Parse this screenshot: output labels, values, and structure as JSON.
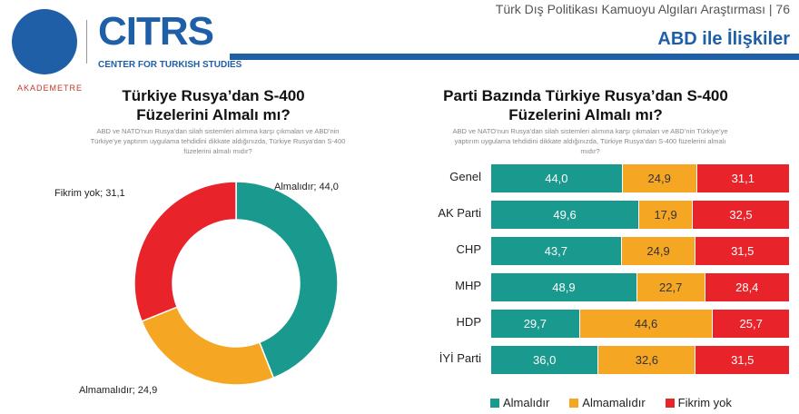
{
  "header": {
    "report_title": "Türk Dış Politikası Kamuoyu Algıları Araştırması | 76",
    "section_title": "ABD ile İlişkiler"
  },
  "logos": {
    "university": "KADİR HAS ÜNİVERSİTESİ 1997",
    "citrs": "CITRS",
    "citrs_sub": "CENTER FOR TURKISH STUDIES",
    "akademetre": "AKADEMETRE"
  },
  "colors": {
    "almalidir": "#1a9a8e",
    "almamalidir": "#f5a623",
    "fikrim_yok": "#e8232a",
    "brand": "#1f5fa8"
  },
  "chart_data": [
    {
      "type": "pie",
      "title": "Türkiye Rusya’dan S-400 Füzelerini Almalı mı?",
      "subtitle": "ABD ve NATO’nun Rusya’dan silah sistemleri alımına karşı çıkmaları ve ABD’nin Türkiye’ye yaptırım uygulama tehdidini dikkate aldığınızda, Türkiye Rusya’dan S-400 füzelerini almalı mıdır?",
      "slices": [
        {
          "label": "Almalıdır",
          "value": 44.0,
          "text": "Almalıdır; 44,0"
        },
        {
          "label": "Almamalıdır",
          "value": 24.9,
          "text": "Almamalıdır; 24,9"
        },
        {
          "label": "Fikrim yok",
          "value": 31.1,
          "text": "Fikrim yok; 31,1"
        }
      ]
    },
    {
      "type": "bar",
      "stacked": true,
      "orientation": "horizontal",
      "title": "Parti Bazında Türkiye Rusya’dan S-400 Füzelerini Almalı mı?",
      "subtitle": "ABD ve NATO’nun Rusya’dan silah sistemleri alımına karşı çıkmaları ve ABD’nin Türkiye’ye yaptırım uygulama tehdidini dikkate aldığınızda, Türkiye Rusya’dan S-400 füzelerini almalı mıdır?",
      "categories": [
        "Genel",
        "AK Parti",
        "CHP",
        "MHP",
        "HDP",
        "İYİ Parti"
      ],
      "series": [
        {
          "name": "Almalıdır",
          "values": [
            44.0,
            49.6,
            43.7,
            48.9,
            29.7,
            36.0
          ],
          "labels": [
            "44,0",
            "49,6",
            "43,7",
            "48,9",
            "29,7",
            "36,0"
          ]
        },
        {
          "name": "Almamalıdır",
          "values": [
            24.9,
            17.9,
            24.9,
            22.7,
            44.6,
            32.6
          ],
          "labels": [
            "24,9",
            "17,9",
            "24,9",
            "22,7",
            "44,6",
            "32,6"
          ]
        },
        {
          "name": "Fikrim yok",
          "values": [
            31.1,
            32.5,
            31.5,
            28.4,
            25.7,
            31.5
          ],
          "labels": [
            "31,1",
            "32,5",
            "31,5",
            "28,4",
            "25,7",
            "31,5"
          ]
        }
      ],
      "legend": "bottom"
    }
  ]
}
